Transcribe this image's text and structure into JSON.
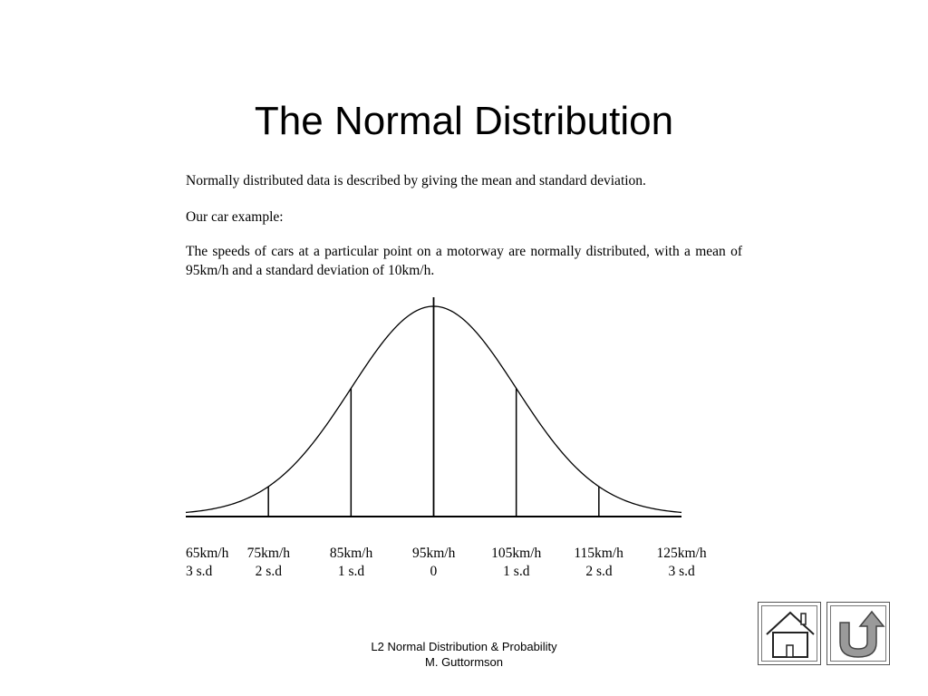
{
  "title": "The Normal Distribution",
  "paragraphs": {
    "p1": "Normally distributed data is described by giving the mean and standard deviation.",
    "p2": "Our car example:",
    "p3": "The speeds of cars at a particular point on a motorway are normally distributed, with a mean of 95km/h and a standard deviation of 10km/h."
  },
  "chart_data": {
    "type": "line",
    "mean": 95,
    "sd": 10,
    "x_range": [
      65,
      125
    ],
    "tick_labels": [
      "65km/h",
      "75km/h",
      "85km/h",
      "95km/h",
      "105km/h",
      "115km/h",
      "125km/h"
    ],
    "sd_labels": [
      "3 s.d",
      "2 s.d",
      "1 s.d",
      "0",
      "1 s.d",
      "2 s.d",
      "3 s.d"
    ],
    "vertical_lines_at": [
      75,
      85,
      95,
      105,
      115
    ]
  },
  "footer": {
    "line1": "L2 Normal Distribution & Probability",
    "line2": "M. Guttormson"
  },
  "nav": {
    "home_icon": "home-icon",
    "back_icon": "return-arrow-icon"
  }
}
